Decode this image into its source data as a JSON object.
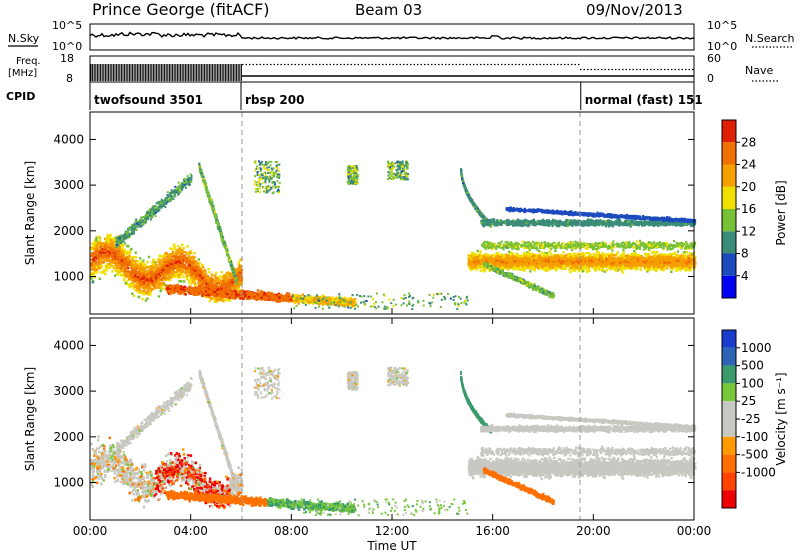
{
  "header": {
    "station": "Prince George (fitACF)",
    "beam": "Beam 03",
    "date": "09/Nov/2013"
  },
  "strip": {
    "nsky_label": "N.Sky",
    "nsearch_label": "N.Search",
    "freq_label_1": "Freq.",
    "freq_label_2": "[MHz]",
    "nave_label": "Nave",
    "cpid_label": "CPID",
    "nsky_ticks": [
      "10^5",
      "10^0"
    ],
    "nsearch_ticks": [
      "10^5",
      "10^0"
    ],
    "freq_ticks": [
      "18",
      "8"
    ],
    "nave_ticks": [
      "60",
      "0"
    ]
  },
  "cpid_segments": [
    {
      "label": "twofsound 3501",
      "start": 0,
      "end": 6
    },
    {
      "label": "rbsp 200",
      "start": 6,
      "end": 19.5
    },
    {
      "label": "normal (fast) 151",
      "start": 19.5,
      "end": 24
    }
  ],
  "chart_data": [
    {
      "type": "heatmap",
      "title": "Power",
      "ylabel": "Slant Range [km]",
      "xlabel": "",
      "xlim": [
        0,
        24
      ],
      "ylim": [
        180,
        4600
      ],
      "yticks": [
        "1000",
        "2000",
        "3000",
        "4000"
      ],
      "colorbar": {
        "label": "Power [dB]",
        "ticks": [
          "4",
          "8",
          "12",
          "16",
          "20",
          "24",
          "28"
        ],
        "range": [
          0,
          30
        ]
      },
      "features": [
        {
          "t": [
            0,
            6
          ],
          "range": [
            500,
            2300
          ],
          "value": 22
        },
        {
          "t": [
            3,
            10
          ],
          "range": [
            250,
            700
          ],
          "value": 26
        },
        {
          "t": [
            15,
            24
          ],
          "range": [
            1100,
            1500
          ],
          "value": 22
        },
        {
          "t": [
            15.3,
            24
          ],
          "range": [
            2000,
            2300
          ],
          "value": 10
        },
        {
          "t": [
            16.5,
            24
          ],
          "range": [
            2350,
            2550
          ],
          "value": 6
        }
      ]
    },
    {
      "type": "heatmap",
      "title": "Velocity",
      "ylabel": "Slant Range [km]",
      "xlabel": "Time UT",
      "xlim": [
        0,
        24
      ],
      "ylim": [
        180,
        4600
      ],
      "yticks": [
        "1000",
        "2000",
        "3000",
        "4000"
      ],
      "xticks": [
        "00:00",
        "04:00",
        "08:00",
        "12:00",
        "16:00",
        "20:00",
        "00:00"
      ],
      "colorbar": {
        "label": "Velocity [m s⁻¹]",
        "ticks": [
          "1000",
          "500",
          "100",
          "25",
          "-25",
          "-100",
          "-500",
          "-1000"
        ]
      },
      "features": [
        {
          "t": [
            0,
            5
          ],
          "range": [
            1000,
            2000
          ],
          "value": 0
        },
        {
          "t": [
            2.5,
            5.5
          ],
          "range": [
            700,
            2000
          ],
          "value": -800
        },
        {
          "t": [
            1.5,
            7
          ],
          "range": [
            300,
            900
          ],
          "value": -300
        },
        {
          "t": [
            7,
            12
          ],
          "range": [
            250,
            500
          ],
          "value": 100
        },
        {
          "t": [
            16,
            24
          ],
          "range": [
            1100,
            1700
          ],
          "value": 0
        }
      ]
    }
  ],
  "colors": {
    "power": [
      "#0000f0",
      "#1b4bbe",
      "#3a8c78",
      "#78c036",
      "#f0e000",
      "#f5a000",
      "#f07000",
      "#e02000"
    ],
    "velocity_pos": [
      "#1a3ccc",
      "#2d64b6",
      "#3a9a6c",
      "#78c83c"
    ],
    "velocity_zero": "#c8c8c2",
    "velocity_neg": [
      "#ff9a00",
      "#ff7000",
      "#ff4400",
      "#ee0000"
    ]
  }
}
